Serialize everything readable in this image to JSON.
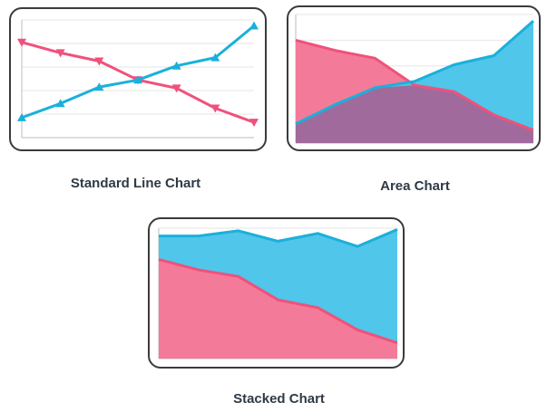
{
  "colors": {
    "pink": "#f0517b",
    "blue": "#1ab0db",
    "pink_fill": "#f47a99",
    "blue_fill": "#50c6ea",
    "overlap_fill": "#a16a9c"
  },
  "chart_data": [
    {
      "type": "line",
      "title": "Standard Line Chart",
      "x": [
        1,
        2,
        3,
        4,
        5,
        6,
        7
      ],
      "ylim": [
        0,
        10
      ],
      "grid": true,
      "series": [
        {
          "values": [
            8.1,
            7.2,
            6.5,
            4.9,
            4.2,
            2.5,
            1.3
          ],
          "color": "pink",
          "marker": "triangle-down"
        },
        {
          "values": [
            1.7,
            2.9,
            4.3,
            4.9,
            6.1,
            6.8,
            9.5
          ],
          "color": "blue",
          "marker": "triangle-up"
        }
      ]
    },
    {
      "type": "area",
      "title": "Area Chart",
      "x": [
        1,
        2,
        3,
        4,
        5,
        6,
        7
      ],
      "ylim": [
        0,
        10
      ],
      "overlap": true,
      "series": [
        {
          "values": [
            8.0,
            7.2,
            6.6,
            4.5,
            4.0,
            2.2,
            1.0
          ],
          "color": "pink"
        },
        {
          "values": [
            1.5,
            3.0,
            4.3,
            4.8,
            6.1,
            6.8,
            9.5
          ],
          "color": "blue"
        }
      ]
    },
    {
      "type": "area",
      "title": "Stacked Chart",
      "stacked": true,
      "x": [
        1,
        2,
        3,
        4,
        5,
        6,
        7
      ],
      "ylim": [
        0,
        10
      ],
      "series": [
        {
          "values": [
            7.6,
            6.8,
            6.3,
            4.5,
            3.9,
            2.2,
            1.2
          ],
          "color": "pink"
        },
        {
          "values": [
            1.8,
            2.6,
            3.5,
            4.5,
            5.7,
            6.4,
            8.7
          ],
          "color": "blue"
        }
      ]
    }
  ]
}
